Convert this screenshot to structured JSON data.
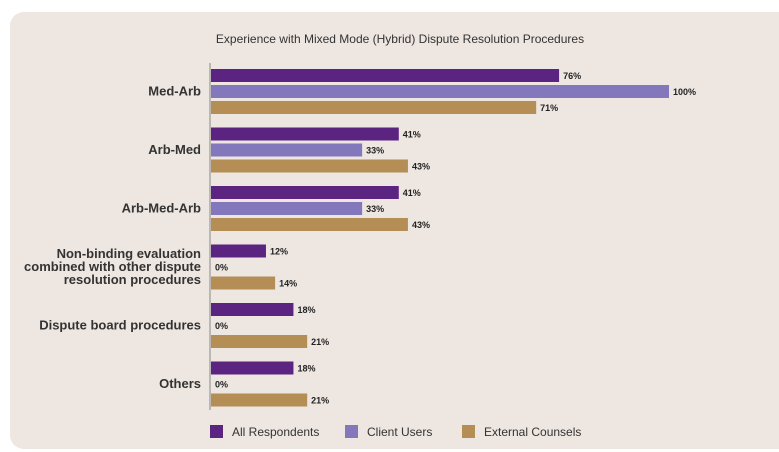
{
  "chart_data": {
    "type": "bar",
    "orientation": "horizontal",
    "title": "Experience with Mixed Mode (Hybrid) Dispute Resolution Procedures",
    "categories": [
      [
        "Med-Arb"
      ],
      [
        "Arb-Med"
      ],
      [
        "Arb-Med-Arb"
      ],
      [
        "Non-binding evaluation",
        "combined with other dispute",
        "resolution procedures"
      ],
      [
        "Dispute board procedures"
      ],
      [
        "Others"
      ]
    ],
    "series": [
      {
        "name": "All Respondents",
        "color": "#5b2480",
        "values": [
          76,
          41,
          41,
          12,
          18,
          18
        ]
      },
      {
        "name": "Client Users",
        "color": "#8478bd",
        "values": [
          100,
          33,
          33,
          0,
          0,
          0
        ]
      },
      {
        "name": "External Counsels",
        "color": "#b48e55",
        "values": [
          71,
          43,
          43,
          14,
          21,
          21
        ]
      }
    ],
    "value_suffix": "%",
    "xlim": [
      0,
      100
    ],
    "legend_position": "bottom",
    "grid": false
  }
}
